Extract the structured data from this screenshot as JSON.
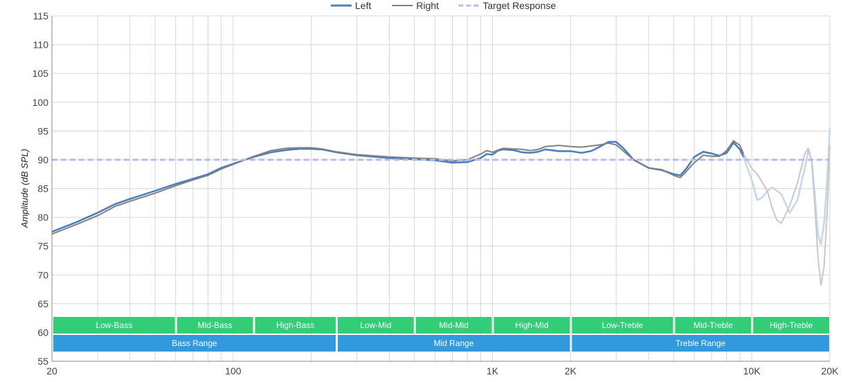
{
  "chart_data": {
    "type": "line",
    "title": "",
    "xlabel": "",
    "ylabel": "Amplitude (dB SPL)",
    "x_scale": "log",
    "xlim": [
      20,
      20000
    ],
    "ylim": [
      55,
      115
    ],
    "y_ticks": [
      55,
      60,
      65,
      70,
      75,
      80,
      85,
      90,
      95,
      100,
      105,
      110,
      115
    ],
    "x_ticks": [
      {
        "value": 20,
        "label": "20"
      },
      {
        "value": 100,
        "label": "100"
      },
      {
        "value": 1000,
        "label": "1K"
      },
      {
        "value": 2000,
        "label": "2K"
      },
      {
        "value": 10000,
        "label": "10K"
      },
      {
        "value": 20000,
        "label": "20K"
      }
    ],
    "grid": true,
    "legend_position": "top-center",
    "series": [
      {
        "name": "Left",
        "color": "#4d7fbf",
        "faded_color": "#c7d8ea",
        "faded_from": 9300,
        "points": [
          [
            20,
            77.5
          ],
          [
            25,
            79.2
          ],
          [
            30,
            80.8
          ],
          [
            35,
            82.3
          ],
          [
            40,
            83.2
          ],
          [
            50,
            84.6
          ],
          [
            60,
            85.8
          ],
          [
            70,
            86.7
          ],
          [
            80,
            87.5
          ],
          [
            90,
            88.6
          ],
          [
            100,
            89.3
          ],
          [
            120,
            90.5
          ],
          [
            140,
            91.3
          ],
          [
            160,
            91.7
          ],
          [
            180,
            91.9
          ],
          [
            200,
            91.9
          ],
          [
            220,
            91.8
          ],
          [
            250,
            91.3
          ],
          [
            300,
            90.8
          ],
          [
            400,
            90.3
          ],
          [
            500,
            90.1
          ],
          [
            600,
            89.9
          ],
          [
            700,
            89.5
          ],
          [
            800,
            89.6
          ],
          [
            900,
            90.3
          ],
          [
            950,
            91.0
          ],
          [
            1000,
            90.9
          ],
          [
            1050,
            91.6
          ],
          [
            1100,
            91.8
          ],
          [
            1200,
            91.7
          ],
          [
            1300,
            91.3
          ],
          [
            1400,
            91.2
          ],
          [
            1500,
            91.4
          ],
          [
            1600,
            91.8
          ],
          [
            1800,
            91.5
          ],
          [
            2000,
            91.5
          ],
          [
            2200,
            91.2
          ],
          [
            2400,
            91.5
          ],
          [
            2600,
            92.3
          ],
          [
            2800,
            93.1
          ],
          [
            3000,
            93.1
          ],
          [
            3200,
            92.0
          ],
          [
            3500,
            90.0
          ],
          [
            4000,
            88.6
          ],
          [
            4500,
            88.2
          ],
          [
            5000,
            87.5
          ],
          [
            5300,
            87.3
          ],
          [
            5600,
            88.5
          ],
          [
            6000,
            90.5
          ],
          [
            6500,
            91.4
          ],
          [
            7000,
            91.1
          ],
          [
            7500,
            90.7
          ],
          [
            8000,
            91.2
          ],
          [
            8500,
            93.0
          ],
          [
            9000,
            91.8
          ],
          [
            9300,
            90.5
          ],
          [
            10000,
            86.5
          ],
          [
            10500,
            83.0
          ],
          [
            11000,
            83.5
          ],
          [
            11500,
            84.6
          ],
          [
            12000,
            85.2
          ],
          [
            13000,
            84.0
          ],
          [
            14000,
            80.8
          ],
          [
            15000,
            83.0
          ],
          [
            16000,
            88.5
          ],
          [
            16500,
            91.5
          ],
          [
            17000,
            90.0
          ],
          [
            17500,
            84.0
          ],
          [
            18000,
            77.0
          ],
          [
            18500,
            75.3
          ],
          [
            19000,
            79.0
          ],
          [
            19500,
            86.0
          ],
          [
            20000,
            95.5
          ]
        ]
      },
      {
        "name": "Right",
        "color": "#808080",
        "faded_color": "#c8c8c8",
        "faded_from": 9300,
        "points": [
          [
            20,
            77.1
          ],
          [
            25,
            78.8
          ],
          [
            30,
            80.3
          ],
          [
            35,
            81.9
          ],
          [
            40,
            82.8
          ],
          [
            50,
            84.2
          ],
          [
            60,
            85.5
          ],
          [
            70,
            86.5
          ],
          [
            80,
            87.3
          ],
          [
            90,
            88.4
          ],
          [
            100,
            89.2
          ],
          [
            120,
            90.6
          ],
          [
            140,
            91.6
          ],
          [
            160,
            92.0
          ],
          [
            180,
            92.1
          ],
          [
            200,
            92.1
          ],
          [
            220,
            91.9
          ],
          [
            250,
            91.4
          ],
          [
            300,
            90.9
          ],
          [
            400,
            90.5
          ],
          [
            500,
            90.3
          ],
          [
            600,
            90.2
          ],
          [
            700,
            89.8
          ],
          [
            800,
            90.0
          ],
          [
            900,
            91.0
          ],
          [
            950,
            91.6
          ],
          [
            1000,
            91.3
          ],
          [
            1050,
            91.7
          ],
          [
            1100,
            92.0
          ],
          [
            1200,
            91.9
          ],
          [
            1300,
            91.8
          ],
          [
            1400,
            91.6
          ],
          [
            1500,
            91.8
          ],
          [
            1600,
            92.3
          ],
          [
            1800,
            92.5
          ],
          [
            2000,
            92.3
          ],
          [
            2200,
            92.2
          ],
          [
            2400,
            92.4
          ],
          [
            2600,
            92.6
          ],
          [
            2800,
            92.9
          ],
          [
            3000,
            92.6
          ],
          [
            3200,
            91.5
          ],
          [
            3500,
            90.0
          ],
          [
            4000,
            88.6
          ],
          [
            4500,
            88.3
          ],
          [
            5000,
            87.3
          ],
          [
            5300,
            86.9
          ],
          [
            5600,
            88.0
          ],
          [
            6000,
            89.5
          ],
          [
            6500,
            90.8
          ],
          [
            7000,
            90.6
          ],
          [
            7500,
            90.6
          ],
          [
            8000,
            91.6
          ],
          [
            8500,
            93.3
          ],
          [
            9000,
            92.5
          ],
          [
            9300,
            91.0
          ],
          [
            10000,
            88.5
          ],
          [
            10500,
            87.5
          ],
          [
            11000,
            86.0
          ],
          [
            11500,
            84.5
          ],
          [
            12000,
            81.5
          ],
          [
            12500,
            79.5
          ],
          [
            13000,
            79.0
          ],
          [
            14000,
            82.0
          ],
          [
            15000,
            86.0
          ],
          [
            16000,
            91.0
          ],
          [
            16500,
            92.0
          ],
          [
            17000,
            90.0
          ],
          [
            17500,
            82.0
          ],
          [
            18000,
            73.0
          ],
          [
            18500,
            68.2
          ],
          [
            19000,
            71.5
          ],
          [
            19500,
            80.5
          ],
          [
            20000,
            92.5
          ]
        ]
      },
      {
        "name": "Target Response",
        "color": "#b7bcf0",
        "dashed": true,
        "points": [
          [
            20,
            90
          ],
          [
            20000,
            90
          ]
        ]
      }
    ],
    "bands": [
      {
        "row": 1,
        "label": "Low-Bass",
        "from": 20,
        "to": 60,
        "color": "#33cc77"
      },
      {
        "row": 1,
        "label": "Mid-Bass",
        "from": 60,
        "to": 120,
        "color": "#33cc77"
      },
      {
        "row": 1,
        "label": "High-Bass",
        "from": 120,
        "to": 250,
        "color": "#33cc77"
      },
      {
        "row": 1,
        "label": "Low-Mid",
        "from": 250,
        "to": 500,
        "color": "#33cc77"
      },
      {
        "row": 1,
        "label": "Mid-Mid",
        "from": 500,
        "to": 1000,
        "color": "#33cc77"
      },
      {
        "row": 1,
        "label": "High-Mid",
        "from": 1000,
        "to": 2000,
        "color": "#33cc77"
      },
      {
        "row": 1,
        "label": "Low-Treble",
        "from": 2000,
        "to": 5000,
        "color": "#33cc77"
      },
      {
        "row": 1,
        "label": "Mid-Treble",
        "from": 5000,
        "to": 10000,
        "color": "#33cc77"
      },
      {
        "row": 1,
        "label": "High-Treble",
        "from": 10000,
        "to": 20000,
        "color": "#33cc77"
      },
      {
        "row": 2,
        "label": "Bass Range",
        "from": 20,
        "to": 250,
        "color": "#3399dd"
      },
      {
        "row": 2,
        "label": "Mid Range",
        "from": 250,
        "to": 2000,
        "color": "#3399dd"
      },
      {
        "row": 2,
        "label": "Treble Range",
        "from": 2000,
        "to": 20000,
        "color": "#3399dd"
      }
    ]
  }
}
